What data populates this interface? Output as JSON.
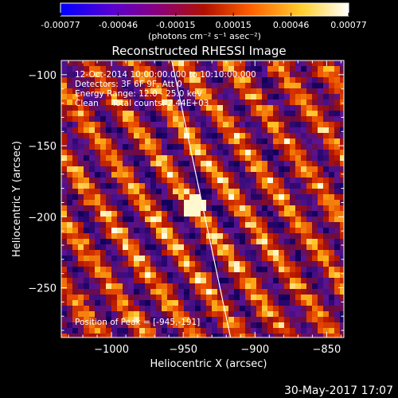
{
  "colorbar": {
    "ticks": [
      "-0.00077",
      "-0.00046",
      "-0.00015",
      "0.00015",
      "0.00046",
      "0.00077"
    ],
    "unit_label": "(photons cm⁻² s⁻¹ asec⁻²)",
    "colors": [
      "#0000ff",
      "#6a00cc",
      "#a0003a",
      "#e03000",
      "#ff8a00",
      "#ffe040",
      "#ffffff"
    ]
  },
  "chart_data": {
    "type": "heatmap",
    "title": "Reconstructed RHESSI Image",
    "xlabel": "Heliocentric X (arcsec)",
    "ylabel": "Heliocentric Y (arcsec)",
    "xlim": [
      -1035,
      -838
    ],
    "ylim": [
      -285,
      -90
    ],
    "xticks": [
      -1000,
      -950,
      -900,
      -850
    ],
    "yticks": [
      -100,
      -150,
      -200,
      -250
    ],
    "value_range": [
      -0.00077,
      0.00077
    ],
    "pattern": "diagonal stripes, brightest near (-945, -191)",
    "peak": {
      "x": -945,
      "y": -191
    },
    "limb_line": [
      [
        -958,
        -90
      ],
      [
        -917,
        -285
      ]
    ],
    "annotations": [
      "12-Oct-2014 10:00:00.000 to 10:10:00.000",
      "Detectors: 3F 6F 9F, Att 0",
      "Energy Range: 12.0 - 25.0 keV",
      "Clean     Total counts: 2.44E+03",
      "Position of Peak = [-945,-191]"
    ]
  },
  "footer": {
    "timestamp": "30-May-2017 17:07"
  }
}
